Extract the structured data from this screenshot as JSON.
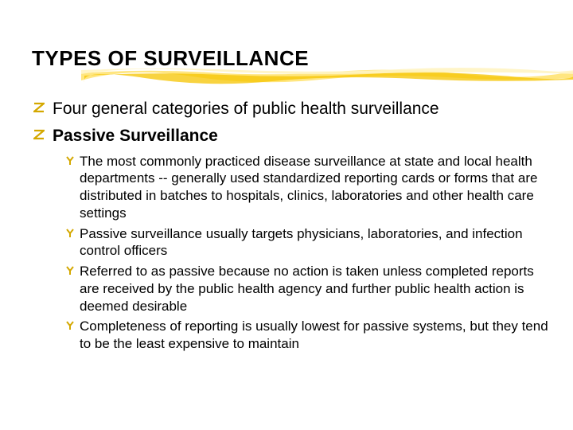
{
  "slide": {
    "title": "TYPES OF SURVEILLANCE",
    "title_fontsize": 26,
    "title_color": "#000000",
    "underline": {
      "color_light": "#fff4c2",
      "color_mid": "#ffe680",
      "color_dark": "#f5c400"
    },
    "level1_bullets": [
      {
        "text": "Four general categories of public health surveillance",
        "bold": false
      },
      {
        "text": "Passive Surveillance",
        "bold": true
      }
    ],
    "level1_fontsize": 21,
    "level1_color": "#000000",
    "level1_marker_color": "#d4a800",
    "level1_marker_size": 14,
    "level2_bullets": [
      "The most commonly practiced disease surveillance at state and local health departments -- generally used standardized reporting cards or forms that are distributed in batches to hospitals, clinics, laboratories and other health care settings",
      "Passive surveillance usually targets physicians, laboratories, and infection control officers",
      "Referred to as passive because no action is taken unless completed reports are received by the public health agency and further public health action is deemed desirable",
      "Completeness of reporting is usually lowest for passive systems, but they tend to be the least expensive to maintain"
    ],
    "level2_fontsize": 17,
    "level2_color": "#000000",
    "level2_marker_color": "#d4a800",
    "level2_marker_size": 12,
    "background_color": "#ffffff"
  }
}
